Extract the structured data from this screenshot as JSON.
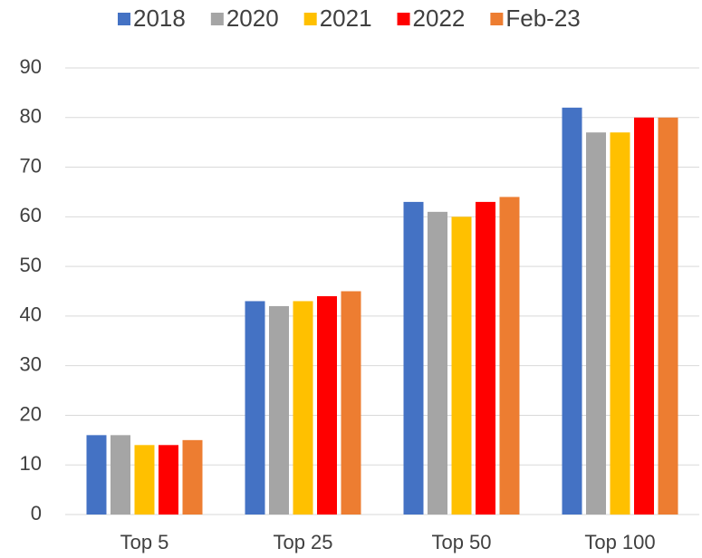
{
  "chart_data": {
    "type": "bar",
    "categories": [
      "Top 5",
      "Top 25",
      "Top 50",
      "Top 100"
    ],
    "series": [
      {
        "name": "2018",
        "color": "#4472c4",
        "values": [
          16,
          43,
          63,
          82
        ]
      },
      {
        "name": "2020",
        "color": "#a5a5a5",
        "values": [
          16,
          42,
          61,
          77
        ]
      },
      {
        "name": "2021",
        "color": "#ffc000",
        "values": [
          14,
          43,
          60,
          77
        ]
      },
      {
        "name": "2022",
        "color": "#ff0000",
        "values": [
          14,
          44,
          63,
          80
        ]
      },
      {
        "name": "Feb-23",
        "color": "#ed7d31",
        "values": [
          15,
          45,
          64,
          80
        ]
      }
    ],
    "ylim": [
      0,
      90
    ],
    "yticks": [
      0,
      10,
      20,
      30,
      40,
      50,
      60,
      70,
      80,
      90
    ],
    "grid": true,
    "legend": "top"
  }
}
